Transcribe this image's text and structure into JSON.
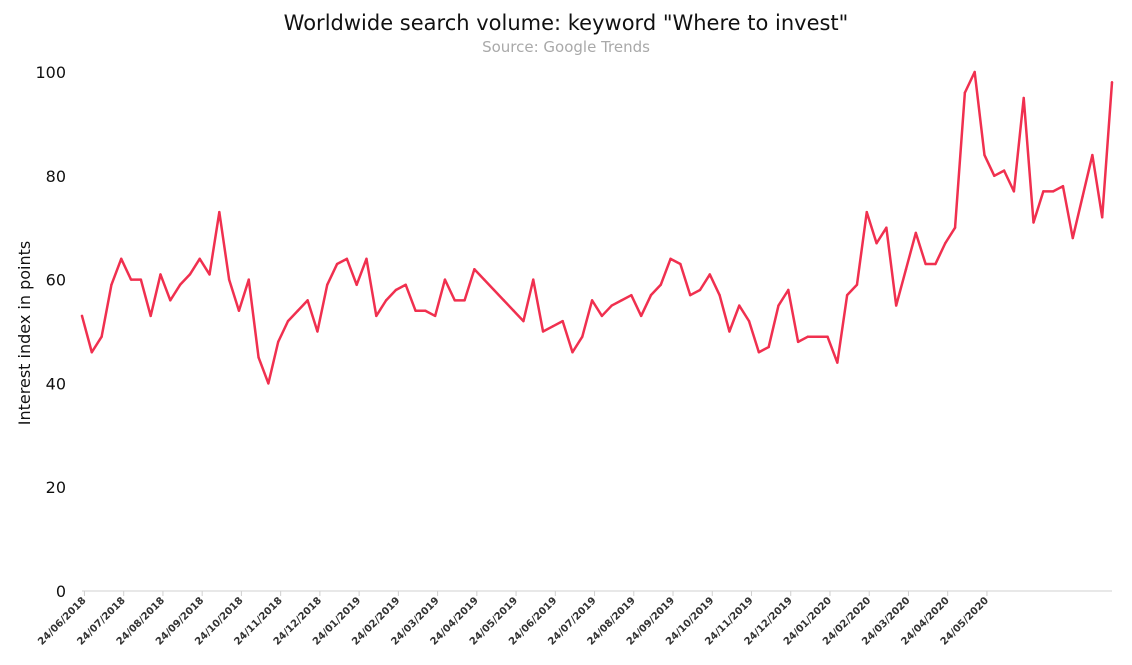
{
  "chart_data": {
    "type": "line",
    "title": "Worldwide search volume: keyword \"Where to invest\"",
    "subtitle": "Source: Google Trends",
    "xlabel": "",
    "ylabel": "Interest index in points",
    "ylim": [
      0,
      100
    ],
    "yticks": [
      0,
      20,
      40,
      60,
      80,
      100
    ],
    "grid": false,
    "line_color": "#f0304f",
    "x_tick_labels": [
      "24/06/2018",
      "24/07/2018",
      "24/08/2018",
      "24/09/2018",
      "24/10/2018",
      "24/11/2018",
      "24/12/2018",
      "24/01/2019",
      "24/02/2019",
      "24/03/2019",
      "24/04/2019",
      "24/05/2019",
      "24/06/2019",
      "24/07/2019",
      "24/08/2019",
      "24/09/2019",
      "24/10/2019",
      "24/11/2019",
      "24/12/2019",
      "24/01/2020",
      "24/02/2020",
      "24/03/2020",
      "24/04/2020",
      "24/05/2020"
    ],
    "series": [
      {
        "values": [
          53,
          46,
          49,
          59,
          64,
          60,
          60,
          53,
          61,
          56,
          59,
          61,
          64,
          61,
          73,
          60,
          54,
          60,
          45,
          40,
          48,
          52,
          54,
          56,
          50,
          59,
          63,
          64,
          59,
          64,
          53,
          56,
          58,
          59,
          54,
          54,
          53,
          60,
          56,
          56,
          62,
          60,
          58,
          56,
          54,
          52,
          60,
          50,
          51,
          52,
          46,
          49,
          56,
          53,
          55,
          56,
          57,
          53,
          57,
          59,
          64,
          63,
          57,
          58,
          61,
          57,
          50,
          55,
          52,
          46,
          47,
          55,
          58,
          48,
          49,
          49,
          49,
          44,
          57,
          59,
          73,
          67,
          70,
          55,
          62,
          69,
          63,
          63,
          67,
          70,
          96,
          100,
          84,
          80,
          81,
          77,
          95,
          71,
          77,
          77,
          78,
          68,
          76,
          84,
          72,
          98
        ]
      }
    ]
  }
}
